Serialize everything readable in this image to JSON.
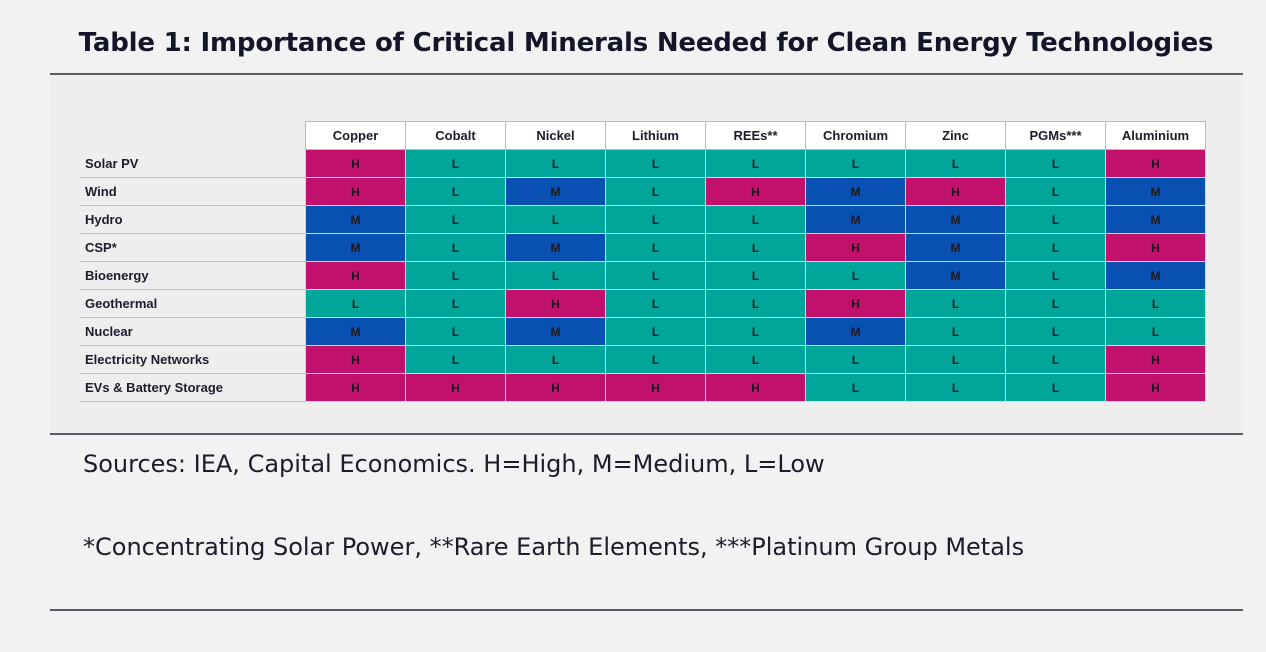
{
  "title": "Table 1: Importance of Critical Minerals Needed for Clean Energy Technologies",
  "chart_data": {
    "type": "heatmap",
    "title": "Table 1: Importance of Critical Minerals Needed for Clean Energy Technologies",
    "columns": [
      "Copper",
      "Cobalt",
      "Nickel",
      "Lithium",
      "REEs**",
      "Chromium",
      "Zinc",
      "PGMs***",
      "Aluminium"
    ],
    "rows": [
      {
        "label": "Solar PV",
        "values": [
          "H",
          "L",
          "L",
          "L",
          "L",
          "L",
          "L",
          "L",
          "H"
        ]
      },
      {
        "label": "Wind",
        "values": [
          "H",
          "L",
          "M",
          "L",
          "H",
          "M",
          "H",
          "L",
          "M"
        ]
      },
      {
        "label": "Hydro",
        "values": [
          "M",
          "L",
          "L",
          "L",
          "L",
          "M",
          "M",
          "L",
          "M"
        ]
      },
      {
        "label": "CSP*",
        "values": [
          "M",
          "L",
          "M",
          "L",
          "L",
          "H",
          "M",
          "L",
          "H"
        ]
      },
      {
        "label": "Bioenergy",
        "values": [
          "H",
          "L",
          "L",
          "L",
          "L",
          "L",
          "M",
          "L",
          "M"
        ]
      },
      {
        "label": "Geothermal",
        "values": [
          "L",
          "L",
          "H",
          "L",
          "L",
          "H",
          "L",
          "L",
          "L"
        ]
      },
      {
        "label": "Nuclear",
        "values": [
          "M",
          "L",
          "M",
          "L",
          "L",
          "M",
          "L",
          "L",
          "L"
        ]
      },
      {
        "label": "Electricity Networks",
        "values": [
          "H",
          "L",
          "L",
          "L",
          "L",
          "L",
          "L",
          "L",
          "H"
        ]
      },
      {
        "label": "EVs & Battery Storage",
        "values": [
          "H",
          "H",
          "H",
          "H",
          "H",
          "L",
          "L",
          "L",
          "H"
        ]
      }
    ],
    "colors": {
      "H": "#c2116c",
      "M": "#0950b3",
      "L": "#00a69a"
    }
  },
  "notes": {
    "sources": "Sources: IEA, Capital Economics. H=High, M=Medium, L=Low",
    "footnote": "*Concentrating Solar Power, **Rare Earth Elements, ***Platinum Group Metals"
  }
}
